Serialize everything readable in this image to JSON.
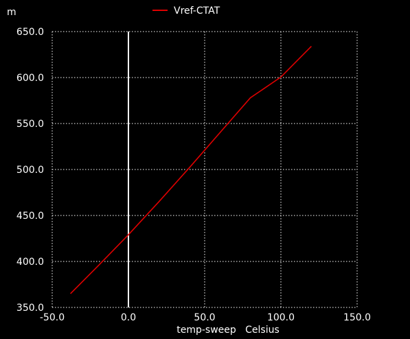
{
  "chart_data": {
    "type": "line",
    "y_unit_prefix": "m",
    "legend": {
      "label": "Vref-CTAT",
      "color": "#e00000",
      "placement": "top-center"
    },
    "xlabel": "temp-sweep   Celsius",
    "xlim": [
      -50,
      150
    ],
    "ylim": [
      350,
      650
    ],
    "xticks": [
      -50,
      0,
      50,
      100,
      150
    ],
    "yticks": [
      350,
      400,
      450,
      500,
      550,
      600,
      650
    ],
    "xtick_labels": [
      "-50.0",
      "0.0",
      "50.0",
      "100.0",
      "150.0"
    ],
    "ytick_labels": [
      "350.0",
      "400.0",
      "450.0",
      "500.0",
      "550.0",
      "600.0",
      "650.0"
    ],
    "grid": true,
    "zero_line": true,
    "series": [
      {
        "name": "Vref-CTAT",
        "color": "#e00000",
        "x": [
          -38,
          -20,
          0,
          20,
          40,
          60,
          80,
          100,
          120
        ],
        "y": [
          365,
          395,
          429,
          465,
          502,
          540,
          578,
          600.5,
          634
        ]
      }
    ]
  }
}
